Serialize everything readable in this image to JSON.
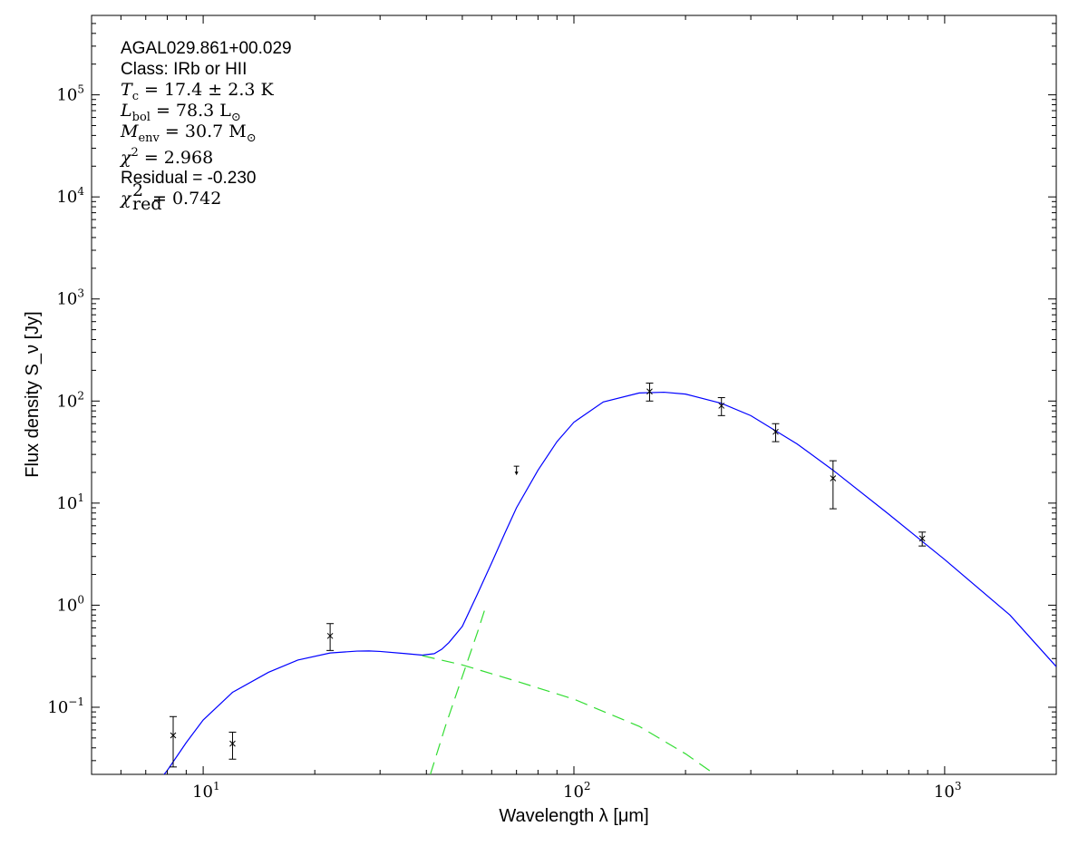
{
  "chart_data": {
    "type": "scatter",
    "title": "",
    "xlabel": "Wavelength λ [μm]",
    "ylabel": "Flux density S_ν [Jy]",
    "xscale": "log",
    "yscale": "log",
    "xlim": [
      5,
      2000
    ],
    "ylim": [
      0.022,
      600000
    ],
    "grid": false,
    "x_tick_labels": [
      "10",
      "10",
      "10"
    ],
    "x_tick_exponents": [
      "1",
      "2",
      "3"
    ],
    "x_tick_values": [
      10,
      100,
      1000
    ],
    "y_tick_labels": [
      "10",
      "10",
      "10",
      "10",
      "10",
      "10",
      "10"
    ],
    "y_tick_exponents": [
      "−1",
      "0",
      "1",
      "2",
      "3",
      "4",
      "5"
    ],
    "y_tick_values": [
      0.1,
      1,
      10,
      100,
      1000,
      10000,
      100000
    ],
    "annotations": {
      "source": "AGAL029.861+00.029",
      "class_label": "Class: IRb or HII",
      "tc_label": "T",
      "tc_sub": "c",
      "tc_value": " = 17.4 ± 2.3 K",
      "lbol_label": "L",
      "lbol_sub": "bol",
      "lbol_value": " = 78.3 L",
      "lbol_unit_sub": "⊙",
      "menv_label": "M",
      "menv_sub": "env",
      "menv_value": " = 30.7 M",
      "menv_unit_sub": "⊙",
      "chi2_label": "χ",
      "chi2_sup": "2",
      "chi2_value": " = 2.968",
      "residual": "Residual = -0.230",
      "chi2red_label": "χ",
      "chi2red_sup": "2",
      "chi2red_sub": "red",
      "chi2red_value": " = 0.742"
    },
    "measurements": [
      {
        "x": 8.3,
        "y": 0.053,
        "ylo": 0.026,
        "yhi": 0.081
      },
      {
        "x": 12.0,
        "y": 0.044,
        "ylo": 0.031,
        "yhi": 0.057
      },
      {
        "x": 22.0,
        "y": 0.5,
        "ylo": 0.36,
        "yhi": 0.66
      },
      {
        "x": 160.0,
        "y": 124.0,
        "ylo": 100.0,
        "yhi": 150.0
      },
      {
        "x": 250.0,
        "y": 90.0,
        "ylo": 72.0,
        "yhi": 108.0
      },
      {
        "x": 350.0,
        "y": 50.0,
        "ylo": 40.0,
        "yhi": 60.0
      },
      {
        "x": 500.0,
        "y": 17.5,
        "ylo": 8.8,
        "yhi": 26.0
      },
      {
        "x": 870.0,
        "y": 4.5,
        "ylo": 3.8,
        "yhi": 5.2
      }
    ],
    "upper_limits": [
      {
        "x": 70.0,
        "y": 23.0
      }
    ],
    "series": [
      {
        "kind": "total_fit",
        "color": "#0000ff",
        "style": "solid",
        "x": [
          7.5,
          8.0,
          9.0,
          10.0,
          12.0,
          15.0,
          18.0,
          22.0,
          26.0,
          28.0,
          30.0,
          35.0,
          39.0,
          42.0,
          44.0,
          46.0,
          50.0,
          55.0,
          60.0,
          65.0,
          70.0,
          80.0,
          90.0,
          100.0,
          120.0,
          150.0,
          175.0,
          200.0,
          250.0,
          300.0,
          400.0,
          500.0,
          700.0,
          1000.0,
          1500.0,
          2000.0
        ],
        "y": [
          0.018,
          0.024,
          0.045,
          0.075,
          0.14,
          0.22,
          0.29,
          0.34,
          0.355,
          0.356,
          0.352,
          0.336,
          0.324,
          0.335,
          0.37,
          0.43,
          0.62,
          1.3,
          2.6,
          5.0,
          9.0,
          21.0,
          40.0,
          62.0,
          98.0,
          120.0,
          122.0,
          117.0,
          95.0,
          72.0,
          38.0,
          21.0,
          8.0,
          2.8,
          0.8,
          0.25
        ]
      },
      {
        "kind": "warm_component",
        "color": "#33dd33",
        "style": "dashed",
        "x": [
          39.0,
          50.0,
          70.0,
          100.0,
          150.0,
          200.0,
          240.0
        ],
        "y": [
          0.32,
          0.26,
          0.18,
          0.12,
          0.065,
          0.035,
          0.022
        ]
      },
      {
        "kind": "cold_component",
        "color": "#33dd33",
        "style": "dashed",
        "x": [
          41.0,
          45.0,
          50.0,
          55.0,
          58.0
        ],
        "y": [
          0.022,
          0.065,
          0.2,
          0.55,
          1.0
        ]
      }
    ]
  }
}
